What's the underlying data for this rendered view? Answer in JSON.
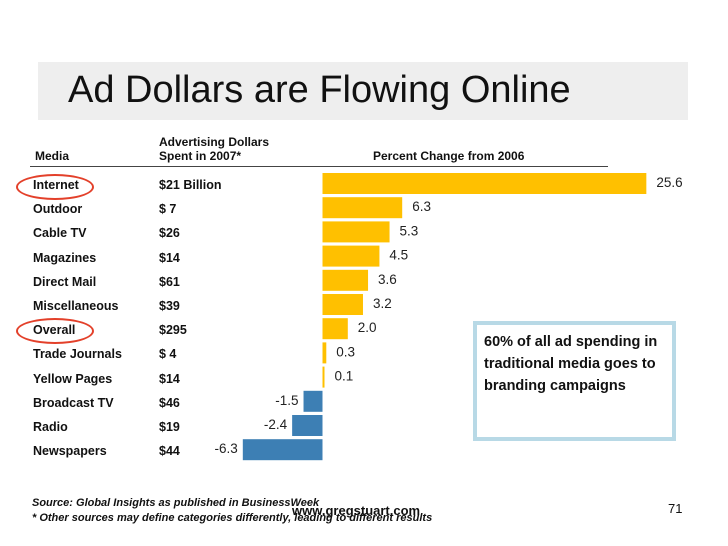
{
  "slide": {
    "title": "Ad Dollars are Flowing Online",
    "website": "www.gregstuart.com",
    "page_number": "71"
  },
  "table": {
    "header_media": "Media",
    "header_dollars_line1": "Advertising Dollars",
    "header_dollars_line2": "Spent in 2007*",
    "header_change": "Percent Change from 2006"
  },
  "callout": {
    "text": "60% of all ad spending in traditional media goes to branding campaigns"
  },
  "footer": {
    "source": "Source: Global Insights as published in BusinessWeek",
    "note": "* Other sources may define categories differently, leading to different results"
  },
  "colors": {
    "positive_bar": "#ffc000",
    "negative_bar": "#3d7fb4",
    "highlight_ring": "#e3402a",
    "callout_border": "#b8d9e6"
  },
  "chart_data": {
    "type": "bar",
    "orientation": "horizontal",
    "title": "Percent Change from 2006",
    "categories": [
      "Internet",
      "Outdoor",
      "Cable TV",
      "Magazines",
      "Direct Mail",
      "Miscellaneous",
      "Overall",
      "Trade Journals",
      "Yellow Pages",
      "Broadcast TV",
      "Radio",
      "Newspapers"
    ],
    "spend_2007": [
      "$21 Billion",
      "$ 7",
      "$26",
      "$14",
      "$61",
      "$39",
      "$295",
      "$ 4",
      "$14",
      "$46",
      "$19",
      "$44"
    ],
    "values": [
      25.6,
      6.3,
      5.3,
      4.5,
      3.6,
      3.2,
      2.0,
      0.3,
      0.1,
      -1.5,
      -2.4,
      -6.3
    ],
    "value_labels": [
      "25.6",
      "6.3",
      "5.3",
      "4.5",
      "3.6",
      "3.2",
      "2.0",
      "0.3",
      "0.1",
      "-1.5",
      "-2.4",
      "-6.3"
    ],
    "highlighted": [
      "Internet",
      "Overall"
    ],
    "grid": false,
    "legend": "none"
  }
}
